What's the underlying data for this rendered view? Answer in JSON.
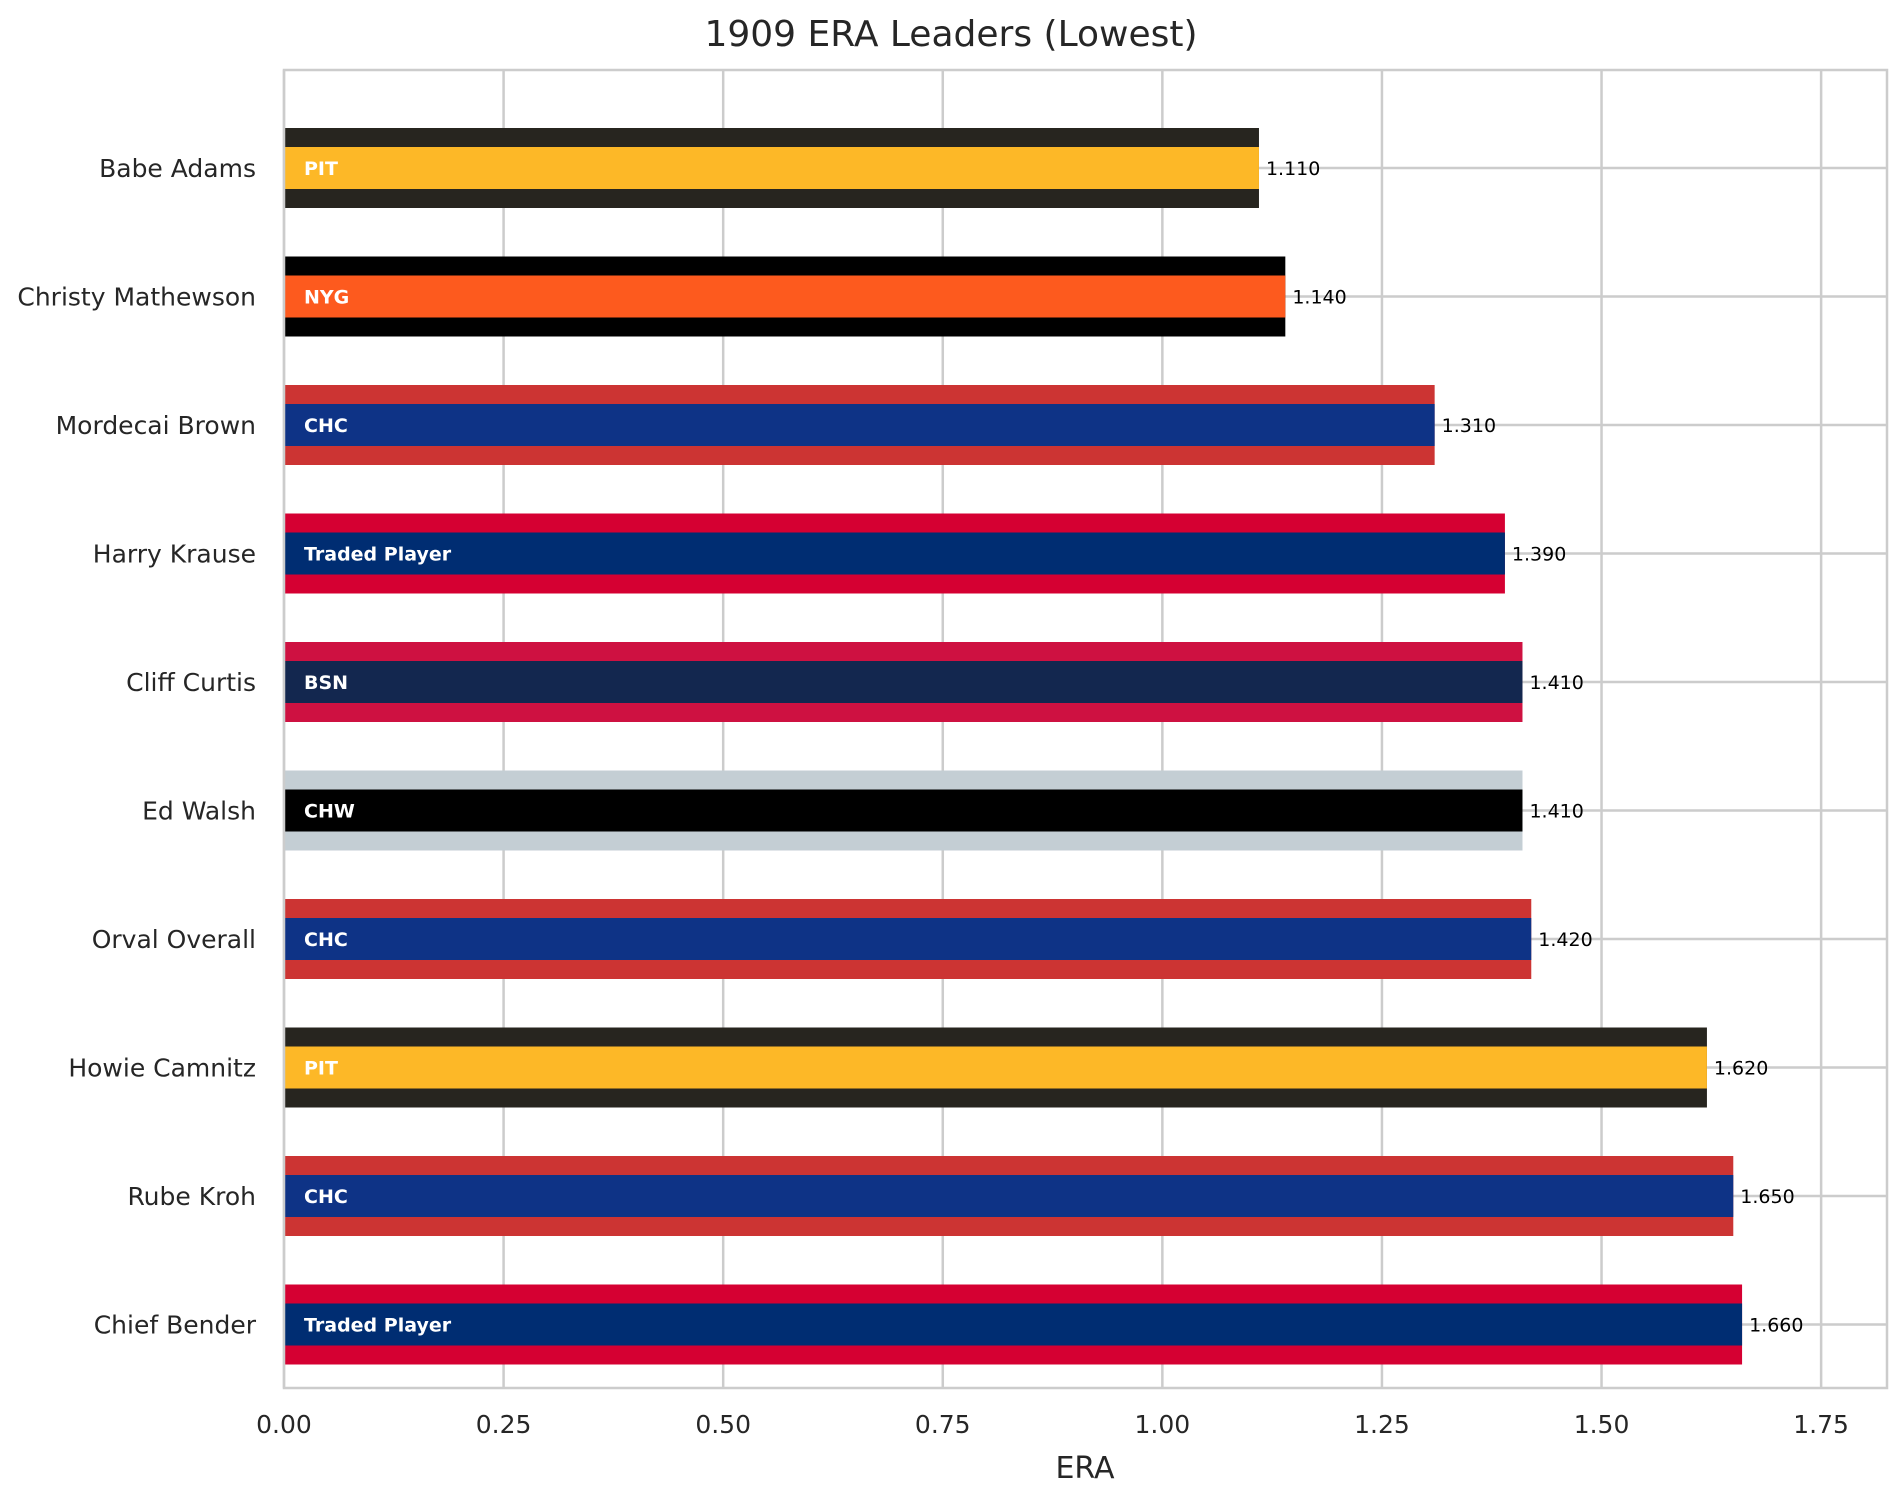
{
  "chart_data": {
    "type": "bar",
    "orientation": "horizontal",
    "title": "1909 ERA Leaders (Lowest)",
    "xlabel": "ERA",
    "ylabel": "",
    "xlim": [
      0,
      1.825
    ],
    "xticks": [
      "0.00",
      "0.25",
      "0.50",
      "0.75",
      "1.00",
      "1.25",
      "1.50",
      "1.75"
    ],
    "xtick_values": [
      0,
      0.25,
      0.5,
      0.75,
      1.0,
      1.25,
      1.5,
      1.75
    ],
    "grid": true,
    "legend": "none",
    "categories": [
      "Babe Adams",
      "Christy Mathewson",
      "Mordecai Brown",
      "Harry Krause",
      "Cliff Curtis",
      "Ed Walsh",
      "Orval Overall",
      "Howie Camnitz",
      "Rube Kroh",
      "Chief Bender"
    ],
    "values": [
      1.11,
      1.14,
      1.31,
      1.39,
      1.41,
      1.41,
      1.42,
      1.62,
      1.65,
      1.66
    ],
    "value_labels": [
      "1.110",
      "1.140",
      "1.310",
      "1.390",
      "1.410",
      "1.410",
      "1.420",
      "1.620",
      "1.650",
      "1.660"
    ],
    "teams": [
      "PIT",
      "NYG",
      "CHC",
      "Traded Player",
      "BSN",
      "CHW",
      "CHC",
      "PIT",
      "CHC",
      "Traded Player"
    ],
    "team_colors": {
      "PIT": {
        "primary": "#FDB827",
        "secondary": "#27251F"
      },
      "NYG": {
        "primary": "#FD5A1E",
        "secondary": "#000000"
      },
      "CHC": {
        "primary": "#0E3386",
        "secondary": "#CC3433"
      },
      "Traded Player": {
        "primary": "#002D72",
        "secondary": "#D50032"
      },
      "BSN": {
        "primary": "#13274F",
        "secondary": "#CE1141"
      },
      "CHW": {
        "primary": "#000000",
        "secondary": "#C4CED4"
      }
    }
  }
}
